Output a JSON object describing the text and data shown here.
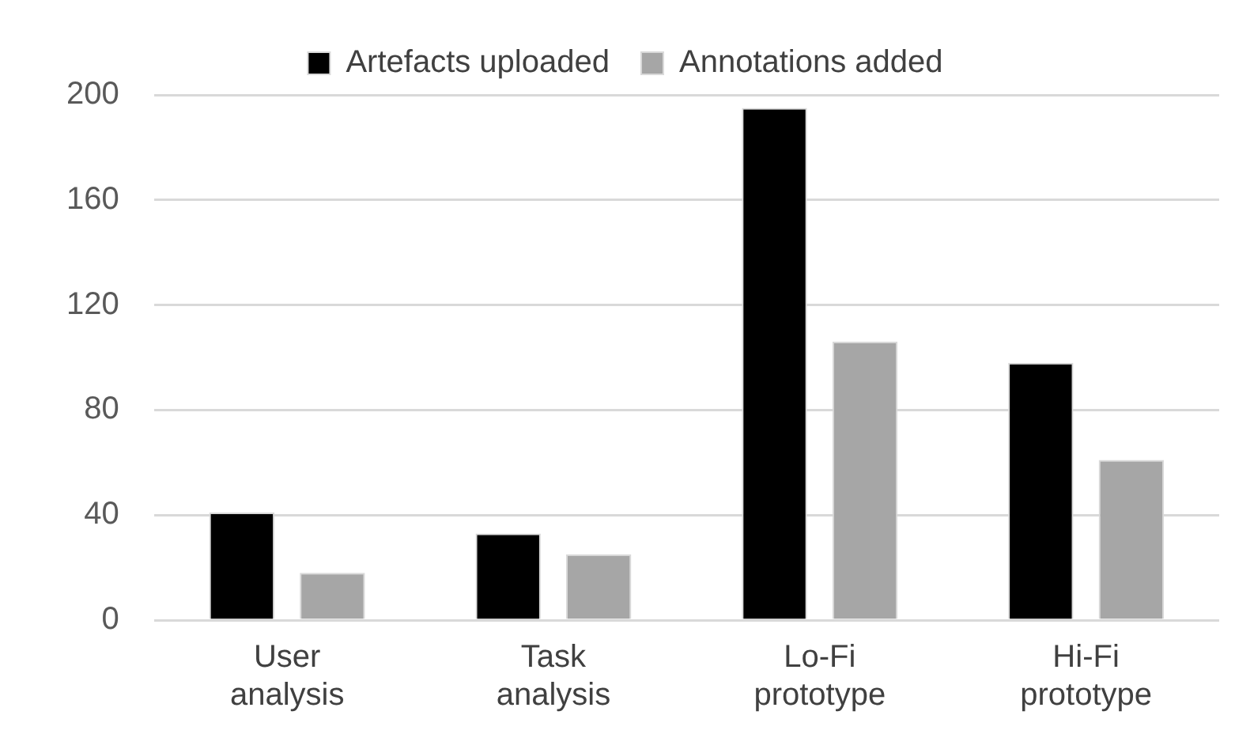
{
  "chart_data": {
    "type": "bar",
    "categories": [
      "User analysis",
      "Task analysis",
      "Lo-Fi prototype",
      "Hi-Fi prototype"
    ],
    "series": [
      {
        "name": "Artefacts uploaded",
        "color": "#000000",
        "values": [
          41,
          33,
          195,
          98
        ]
      },
      {
        "name": "Annotations added",
        "color": "#a6a6a6",
        "values": [
          18,
          25,
          106,
          61
        ]
      }
    ],
    "ylim": [
      0,
      200
    ],
    "yticks": [
      0,
      40,
      80,
      120,
      160,
      200
    ],
    "grid": "y",
    "legend": "top"
  }
}
